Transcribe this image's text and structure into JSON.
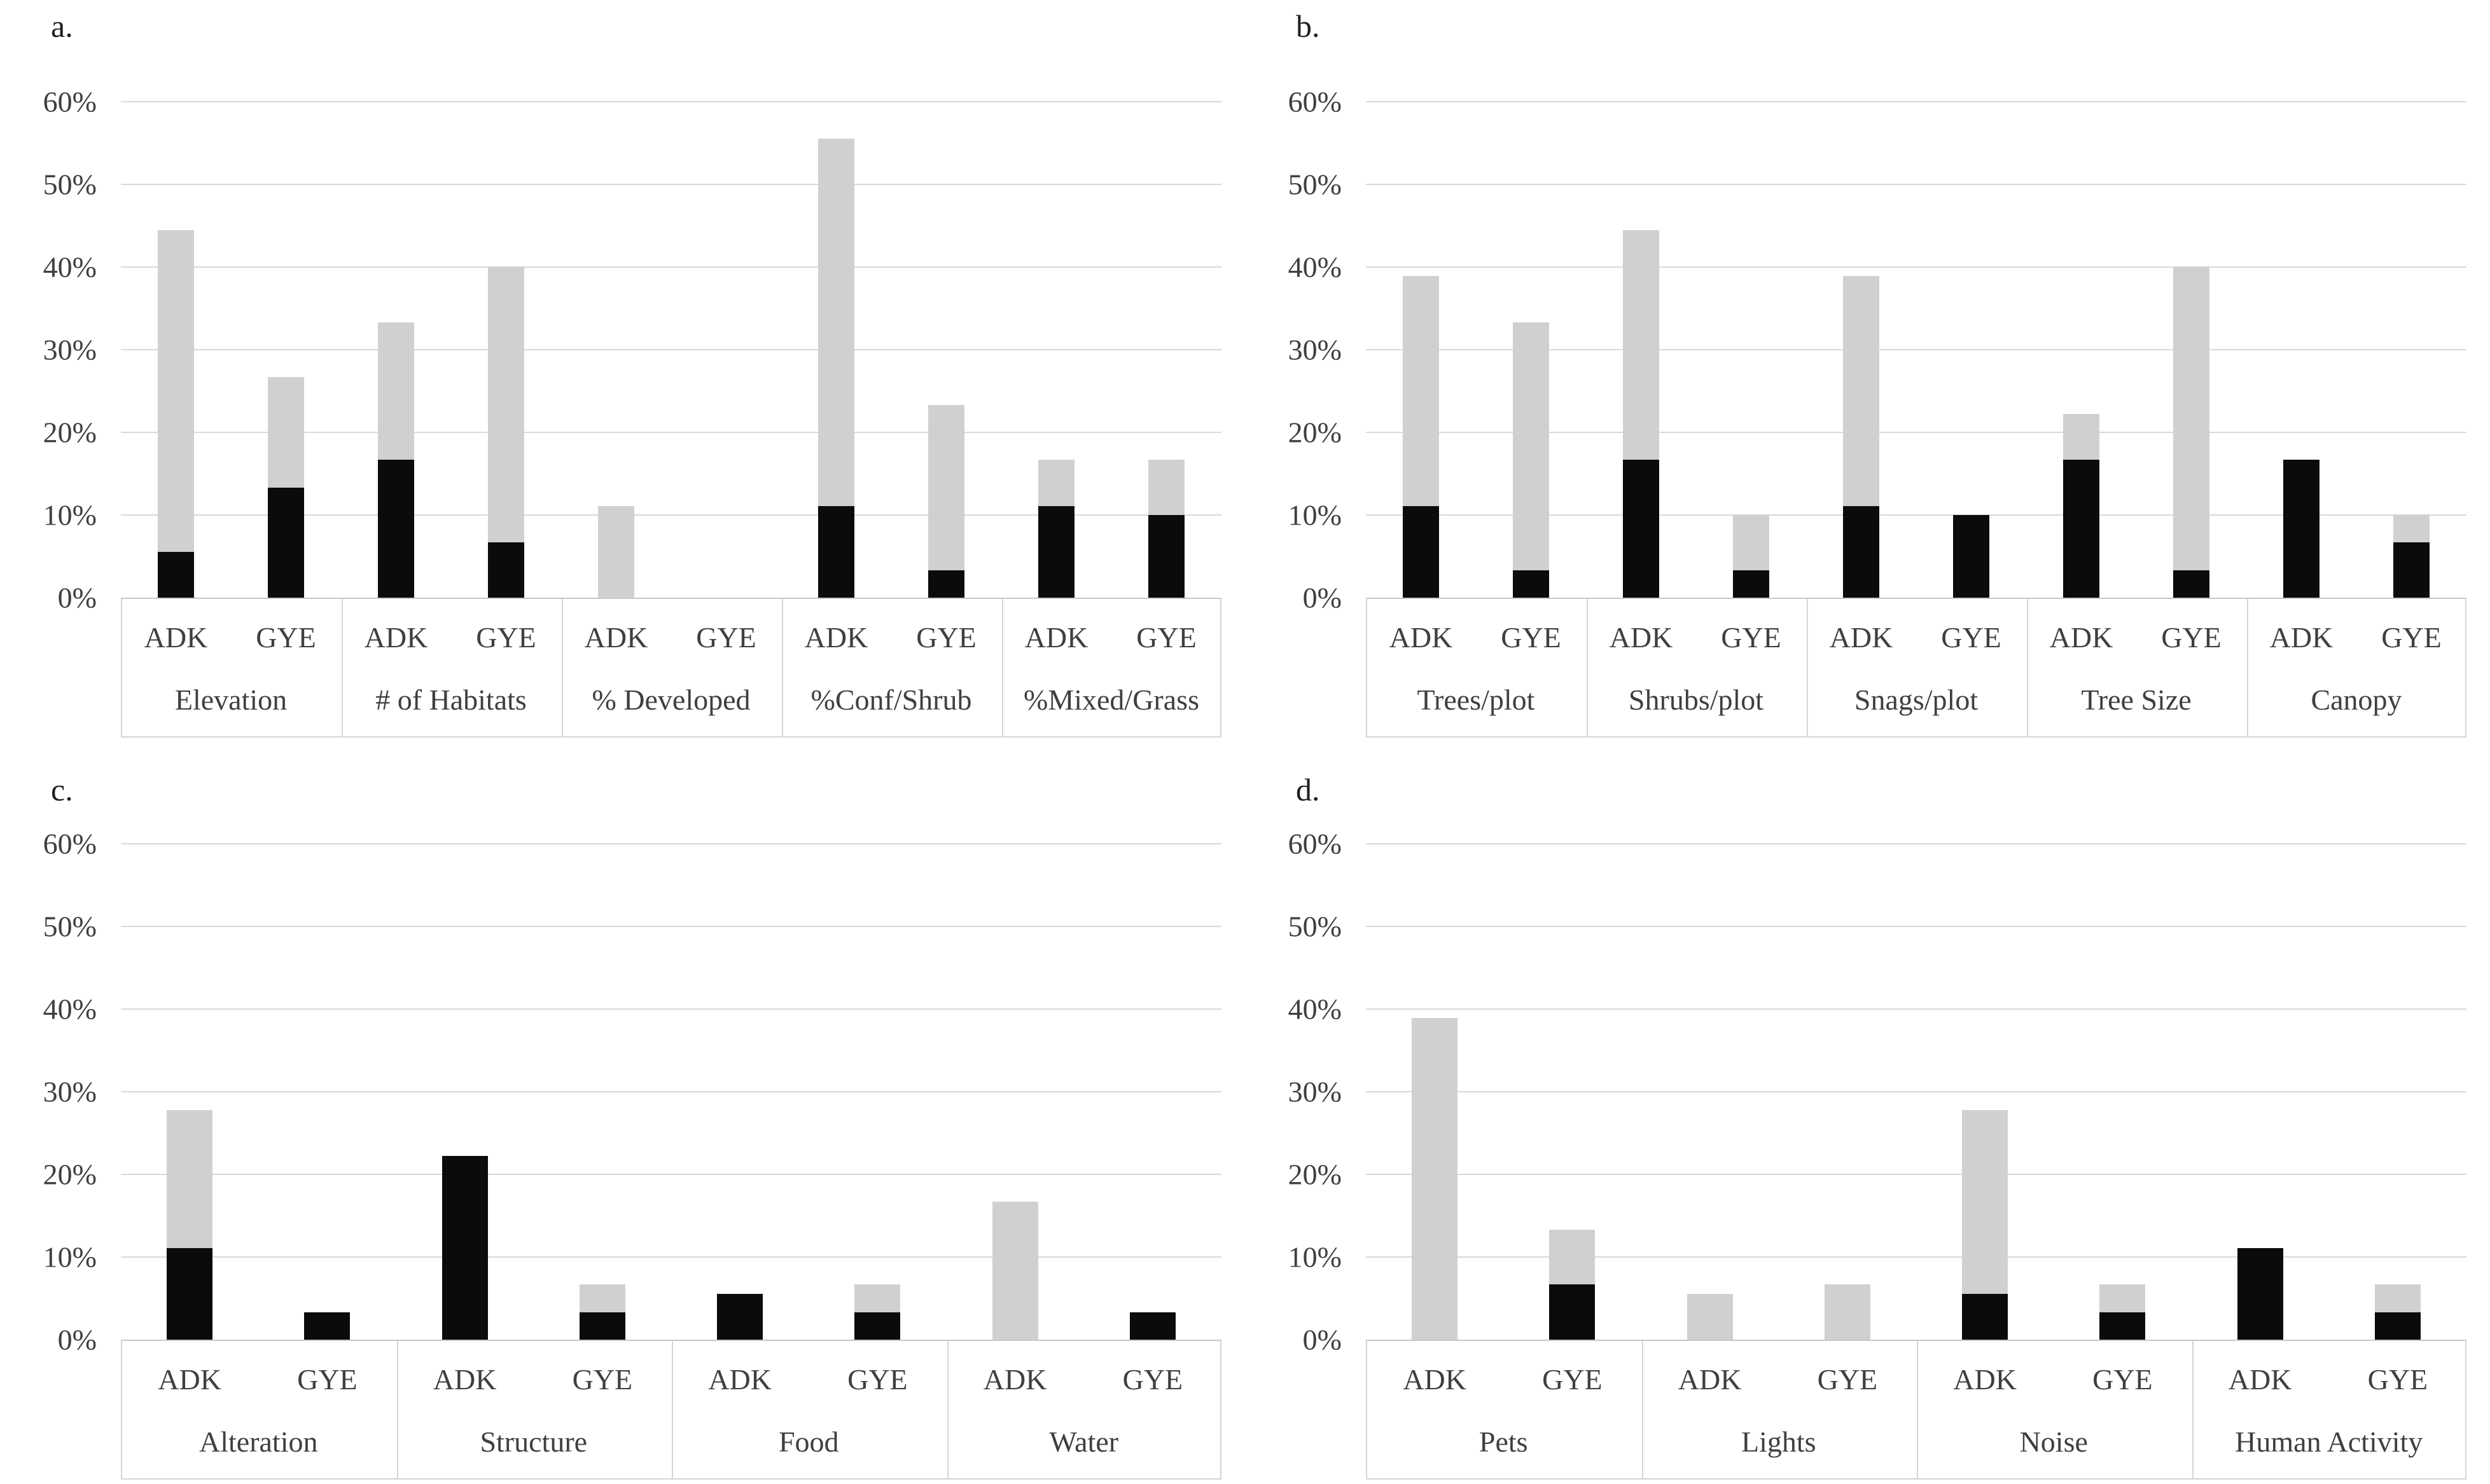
{
  "figure": {
    "panel_letters": [
      "a.",
      "b.",
      "c.",
      "d."
    ],
    "bar_colors": {
      "black_segment": "#0b0b0b",
      "gray_segment": "#d2d0cf"
    },
    "gridline_color": "#d9d9d9",
    "text_color": "#3f3f3f"
  },
  "chart_data": [
    {
      "id": "a",
      "panel_label": "a.",
      "type": "bar",
      "stacked": true,
      "grid": true,
      "ylim": [
        0,
        60
      ],
      "ytick_labels": [
        "60%",
        "50%",
        "40%",
        "30%",
        "20%",
        "10%",
        "0%"
      ],
      "categories": [
        "Elevation",
        "# of Habitats",
        "% Developed",
        "%Conf/Shrub",
        "%Mixed/Grass"
      ],
      "group_bar_labels": [
        "ADK",
        "GYE"
      ],
      "values_format": "per category: [ADK, GYE] segment heights in %",
      "series": [
        {
          "name": "black (bottom segment)",
          "color": "#0b0b0b",
          "values": [
            [
              5.56,
              13.33
            ],
            [
              16.67,
              6.67
            ],
            [
              0,
              0
            ],
            [
              11.11,
              3.33
            ],
            [
              11.11,
              10
            ]
          ]
        },
        {
          "name": "gray (top segment)",
          "color": "#d2d0cf",
          "values": [
            [
              38.89,
              13.33
            ],
            [
              16.67,
              33.33
            ],
            [
              11.11,
              0
            ],
            [
              44.44,
              20
            ],
            [
              5.56,
              6.67
            ]
          ]
        }
      ]
    },
    {
      "id": "b",
      "panel_label": "b.",
      "type": "bar",
      "stacked": true,
      "grid": true,
      "ylim": [
        0,
        60
      ],
      "ytick_labels": [
        "60%",
        "50%",
        "40%",
        "30%",
        "20%",
        "10%",
        "0%"
      ],
      "categories": [
        "Trees/plot",
        "Shrubs/plot",
        "Snags/plot",
        "Tree Size",
        "Canopy"
      ],
      "group_bar_labels": [
        "ADK",
        "GYE"
      ],
      "values_format": "per category: [ADK, GYE] segment heights in %",
      "series": [
        {
          "name": "black (bottom segment)",
          "color": "#0b0b0b",
          "values": [
            [
              11.11,
              3.33
            ],
            [
              16.67,
              3.33
            ],
            [
              11.11,
              10
            ],
            [
              16.67,
              3.33
            ],
            [
              16.67,
              6.67
            ]
          ]
        },
        {
          "name": "gray (top segment)",
          "color": "#d2d0cf",
          "values": [
            [
              27.78,
              30
            ],
            [
              27.78,
              6.67
            ],
            [
              27.78,
              0
            ],
            [
              5.56,
              36.67
            ],
            [
              0,
              3.33
            ]
          ]
        }
      ]
    },
    {
      "id": "c",
      "panel_label": "c.",
      "type": "bar",
      "stacked": true,
      "grid": true,
      "ylim": [
        0,
        60
      ],
      "ytick_labels": [
        "60%",
        "50%",
        "40%",
        "30%",
        "20%",
        "10%",
        "0%"
      ],
      "categories": [
        "Alteration",
        "Structure",
        "Food",
        "Water"
      ],
      "group_bar_labels": [
        "ADK",
        "GYE"
      ],
      "values_format": "per category: [ADK, GYE] segment heights in %",
      "series": [
        {
          "name": "black (bottom segment)",
          "color": "#0b0b0b",
          "values": [
            [
              11.11,
              3.33
            ],
            [
              22.22,
              3.33
            ],
            [
              5.56,
              3.33
            ],
            [
              0,
              3.33
            ]
          ]
        },
        {
          "name": "gray (top segment)",
          "color": "#d2d0cf",
          "values": [
            [
              16.67,
              0
            ],
            [
              0,
              3.33
            ],
            [
              0,
              3.33
            ],
            [
              16.67,
              0
            ]
          ]
        }
      ]
    },
    {
      "id": "d",
      "panel_label": "d.",
      "type": "bar",
      "stacked": true,
      "grid": true,
      "ylim": [
        0,
        60
      ],
      "ytick_labels": [
        "60%",
        "50%",
        "40%",
        "30%",
        "20%",
        "10%",
        "0%"
      ],
      "categories": [
        "Pets",
        "Lights",
        "Noise",
        "Human Activity"
      ],
      "group_bar_labels": [
        "ADK",
        "GYE"
      ],
      "values_format": "per category: [ADK, GYE] segment heights in %",
      "series": [
        {
          "name": "black (bottom segment)",
          "color": "#0b0b0b",
          "values": [
            [
              0,
              6.67
            ],
            [
              0,
              0
            ],
            [
              5.56,
              3.33
            ],
            [
              11.11,
              3.33
            ]
          ]
        },
        {
          "name": "gray (top segment)",
          "color": "#d2d0cf",
          "values": [
            [
              38.89,
              6.67
            ],
            [
              5.56,
              6.67
            ],
            [
              22.22,
              3.33
            ],
            [
              0,
              3.33
            ]
          ]
        }
      ]
    }
  ]
}
